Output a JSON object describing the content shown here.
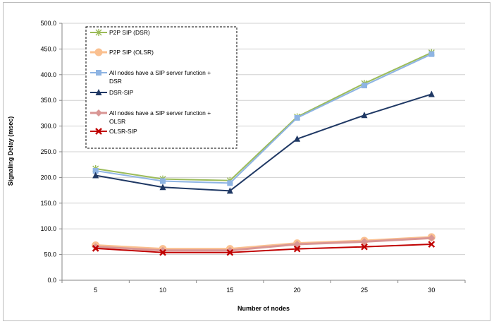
{
  "chart_data": {
    "type": "line",
    "title": "",
    "xlabel": "Number of nodes",
    "ylabel": "Signaling Delay (msec)",
    "categories": [
      "5",
      "10",
      "15",
      "20",
      "25",
      "30"
    ],
    "ylim": [
      0,
      500
    ],
    "y_ticks": [
      "0.0",
      "50.0",
      "100.0",
      "150.0",
      "200.0",
      "250.0",
      "300.0",
      "350.0",
      "400.0",
      "450.0",
      "500.0"
    ],
    "grid": true,
    "legend_position": "top-left inside plot, dashed border",
    "series": [
      {
        "name": "P2P SIP (DSR)",
        "values": [
          217,
          197,
          194,
          318,
          383,
          443
        ],
        "color": "#9bbb59",
        "marker": "asterisk"
      },
      {
        "name": "P2P SIP (OLSR)",
        "values": [
          68,
          61,
          61,
          72,
          77,
          84
        ],
        "color": "#fac090",
        "marker": "circle"
      },
      {
        "name": "All nodes have a SIP server function + DSR",
        "values": [
          213,
          193,
          189,
          316,
          379,
          440
        ],
        "color": "#8eb4e3",
        "marker": "square"
      },
      {
        "name": "DSR-SIP",
        "values": [
          204,
          181,
          174,
          275,
          321,
          362
        ],
        "color": "#1f3864",
        "marker": "triangle"
      },
      {
        "name": "All nodes have a SIP server function + OLSR",
        "values": [
          65,
          58,
          58,
          70,
          75,
          82
        ],
        "color": "#d99694",
        "marker": "diamond"
      },
      {
        "name": "OLSR-SIP",
        "values": [
          62,
          54,
          54,
          61,
          65,
          70
        ],
        "color": "#c00000",
        "marker": "x"
      }
    ]
  }
}
